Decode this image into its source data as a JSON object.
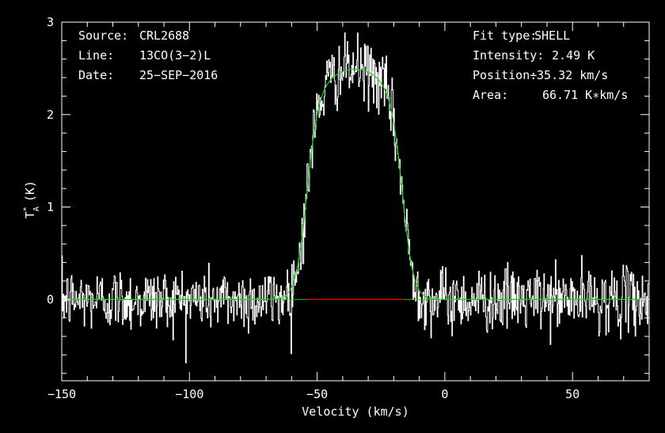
{
  "chart_data": {
    "type": "line",
    "xlabel": "Velocity (km/s)",
    "ylabel": "T_A^* (K)",
    "ylabel_main": "T",
    "ylabel_sub": "A",
    "ylabel_sup": "*",
    "ylabel_unit": "(K)",
    "xlim": [
      -150,
      80
    ],
    "ylim": [
      -0.88,
      3.0
    ],
    "x_ticks_labeled": [
      -150,
      -100,
      -50,
      0,
      50
    ],
    "x_tick_labels": [
      "−150",
      "−100",
      "−50",
      "0",
      "50"
    ],
    "y_ticks_labeled": [
      0,
      1,
      2,
      3
    ],
    "y_tick_labels": [
      "0",
      "1",
      "2",
      "3"
    ],
    "x_minor_step": 10,
    "y_minor_step": 0.2,
    "grid": false,
    "colors": {
      "data": "#ffffff",
      "fit": "#22cc22",
      "baseline_window": "#cc0000",
      "axes": "#ffffff",
      "background": "#000000"
    },
    "series": [
      {
        "style": "histogram",
        "color": "#ffffff",
        "noise_rms": 0.17,
        "x_start": -150,
        "x_end": 80,
        "channel_width": 0.25
      },
      {
        "style": "fit",
        "color": "#22cc22",
        "fit_type": "SHELL",
        "peak_K": 2.49,
        "center_kms": -35.32,
        "area_Kkms": 66.71
      },
      {
        "style": "segment",
        "color": "#cc0000",
        "x": [
          -54,
          -16
        ],
        "y": [
          0,
          0
        ]
      }
    ]
  },
  "annotations": {
    "left": [
      {
        "label": "Source:",
        "value": "CRL2688"
      },
      {
        "label": "Line:",
        "value": "13CO(3−2)L"
      },
      {
        "label": "Date:",
        "value": "25−SEP−2016"
      }
    ],
    "right": [
      {
        "label": "Fit type:",
        "value": "SHELL"
      },
      {
        "label": "Intensity:",
        "value": "2.49 K"
      },
      {
        "label": "Position:",
        "value": "−35.32 km/s"
      },
      {
        "label": "Area:",
        "value": "66.71 K∗km/s"
      }
    ]
  }
}
